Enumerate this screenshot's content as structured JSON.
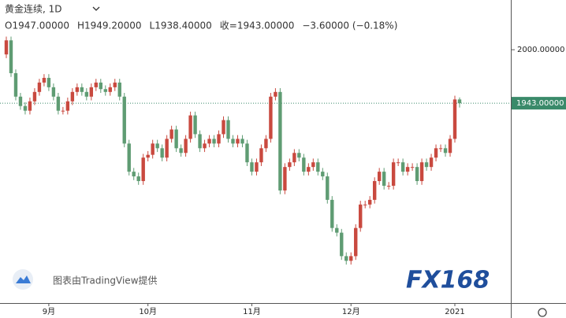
{
  "chart_data": {
    "type": "candlestick",
    "symbol": "黄金连续, 1D",
    "ohlc_labels": [
      "O1947.00000",
      "H1949.20000",
      "L1938.40000",
      "收=1943.00000",
      "−3.60000 (−0.18%)"
    ],
    "watermark": "图表由TradingView提供",
    "logo": "FX168",
    "up_color": "#c9493f",
    "down_color": "#5f9c73",
    "ylim": [
      1730,
      2053
    ],
    "yticks": [
      {
        "value": 2000,
        "label": "2000.00000"
      }
    ],
    "last_price": {
      "value": 1943,
      "label": "1943.00000"
    },
    "categories": [
      null,
      null,
      null,
      null,
      null,
      null,
      null,
      null,
      null,
      "9月",
      null,
      null,
      null,
      null,
      null,
      null,
      null,
      null,
      null,
      null,
      null,
      null,
      null,
      null,
      null,
      null,
      null,
      null,
      null,
      null,
      "10月",
      null,
      null,
      null,
      null,
      null,
      null,
      null,
      null,
      null,
      null,
      null,
      null,
      null,
      null,
      null,
      null,
      null,
      null,
      null,
      null,
      null,
      "11月",
      null,
      null,
      null,
      null,
      null,
      null,
      null,
      null,
      null,
      null,
      null,
      null,
      null,
      null,
      null,
      null,
      null,
      null,
      null,
      null,
      "12月",
      null,
      null,
      null,
      null,
      null,
      null,
      null,
      null,
      null,
      null,
      null,
      null,
      null,
      null,
      null,
      null,
      null,
      null,
      null,
      null,
      null,
      "2021",
      null
    ],
    "open": [
      1995,
      2010,
      1975,
      1950,
      1940,
      1935,
      1945,
      1955,
      1965,
      1970,
      1960,
      1950,
      1935,
      1935,
      1945,
      1955,
      1960,
      1955,
      1950,
      1960,
      1965,
      1958,
      1955,
      1960,
      1965,
      1950,
      1900,
      1870,
      1865,
      1860,
      1885,
      1888,
      1900,
      1895,
      1885,
      1905,
      1915,
      1895,
      1890,
      1905,
      1930,
      1910,
      1895,
      1900,
      1905,
      1900,
      1910,
      1925,
      1905,
      1900,
      1905,
      1900,
      1880,
      1870,
      1880,
      1895,
      1905,
      1950,
      1955,
      1850,
      1875,
      1880,
      1890,
      1885,
      1870,
      1875,
      1880,
      1870,
      1865,
      1840,
      1810,
      1805,
      1780,
      1775,
      1780,
      1810,
      1835,
      1835,
      1840,
      1860,
      1870,
      1855,
      1855,
      1880,
      1880,
      1870,
      1875,
      1875,
      1860,
      1880,
      1875,
      1885,
      1895,
      1895,
      1890,
      1905,
      1947
    ],
    "high": [
      2014,
      2014,
      1979,
      1954,
      1944,
      1949,
      1959,
      1969,
      1974,
      1974,
      1964,
      1954,
      1939,
      1949,
      1959,
      1964,
      1964,
      1959,
      1964,
      1969,
      1969,
      1962,
      1964,
      1969,
      1969,
      1954,
      1904,
      1874,
      1869,
      1889,
      1892,
      1904,
      1904,
      1899,
      1909,
      1919,
      1919,
      1899,
      1909,
      1934,
      1934,
      1914,
      1904,
      1909,
      1909,
      1914,
      1929,
      1929,
      1909,
      1909,
      1909,
      1904,
      1884,
      1884,
      1899,
      1909,
      1954,
      1959,
      1959,
      1879,
      1884,
      1894,
      1894,
      1889,
      1879,
      1884,
      1884,
      1874,
      1869,
      1844,
      1814,
      1809,
      1784,
      1784,
      1814,
      1839,
      1839,
      1844,
      1864,
      1874,
      1874,
      1859,
      1884,
      1884,
      1884,
      1879,
      1879,
      1879,
      1884,
      1884,
      1889,
      1899,
      1899,
      1899,
      1909,
      1951,
      1949.2
    ],
    "low": [
      1991,
      1971,
      1946,
      1936,
      1931,
      1931,
      1941,
      1951,
      1961,
      1956,
      1946,
      1931,
      1931,
      1931,
      1941,
      1951,
      1951,
      1946,
      1946,
      1956,
      1954,
      1951,
      1951,
      1956,
      1946,
      1896,
      1866,
      1861,
      1856,
      1856,
      1881,
      1884,
      1891,
      1881,
      1881,
      1901,
      1891,
      1886,
      1886,
      1901,
      1906,
      1891,
      1891,
      1896,
      1896,
      1896,
      1906,
      1901,
      1896,
      1896,
      1896,
      1876,
      1866,
      1866,
      1876,
      1891,
      1901,
      1946,
      1846,
      1846,
      1871,
      1876,
      1881,
      1866,
      1866,
      1871,
      1866,
      1861,
      1836,
      1806,
      1801,
      1776,
      1771,
      1771,
      1776,
      1806,
      1831,
      1831,
      1836,
      1856,
      1851,
      1851,
      1851,
      1876,
      1866,
      1866,
      1871,
      1856,
      1856,
      1871,
      1871,
      1881,
      1891,
      1886,
      1886,
      1901,
      1938.4
    ],
    "close": [
      2010,
      1975,
      1950,
      1940,
      1935,
      1945,
      1955,
      1965,
      1970,
      1960,
      1950,
      1935,
      1935,
      1945,
      1955,
      1960,
      1955,
      1950,
      1960,
      1965,
      1958,
      1955,
      1960,
      1965,
      1950,
      1900,
      1870,
      1865,
      1860,
      1885,
      1888,
      1900,
      1895,
      1885,
      1905,
      1915,
      1895,
      1890,
      1905,
      1930,
      1910,
      1895,
      1900,
      1905,
      1900,
      1910,
      1925,
      1905,
      1900,
      1905,
      1900,
      1880,
      1870,
      1880,
      1895,
      1905,
      1950,
      1955,
      1850,
      1875,
      1880,
      1890,
      1885,
      1870,
      1875,
      1880,
      1870,
      1865,
      1840,
      1810,
      1805,
      1780,
      1775,
      1780,
      1810,
      1835,
      1835,
      1840,
      1860,
      1870,
      1855,
      1855,
      1880,
      1880,
      1870,
      1875,
      1875,
      1860,
      1880,
      1875,
      1885,
      1895,
      1895,
      1890,
      1905,
      1947,
      1943
    ]
  }
}
